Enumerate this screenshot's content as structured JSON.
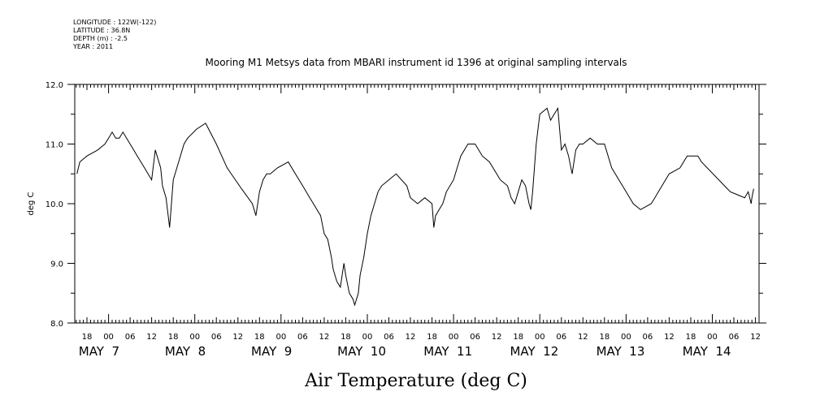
{
  "metadata": {
    "longitude": "LONGITUDE : 122W(-122)",
    "latitude": "LATITUDE : 36.8N",
    "depth": "DEPTH (m) : -2.5",
    "year": "YEAR : 2011"
  },
  "chart_data": {
    "type": "line",
    "title": "Mooring M1 Metsys data from MBARI instrument id 1396 at original sampling intervals",
    "xlabel": "Air Temperature (deg C)",
    "ylabel": "deg C",
    "ylim": [
      8.0,
      12.0
    ],
    "y_ticks": [
      "8.0",
      "9.0",
      "10.0",
      "11.0",
      "12.0"
    ],
    "x_unit": "hours since 2011-05-07 00:00",
    "xlim": [
      -9.4,
      181
    ],
    "hour_tick_labels": [
      "18",
      "00",
      "06",
      "12",
      "18",
      "00",
      "06",
      "12",
      "18",
      "00",
      "06",
      "12",
      "18",
      "00",
      "06",
      "12",
      "18",
      "00",
      "06",
      "12",
      "18",
      "00",
      "06",
      "12",
      "18",
      "00",
      "06",
      "12",
      "18",
      "00",
      "06",
      "12"
    ],
    "day_labels": [
      "MAY 7",
      "MAY 8",
      "MAY 9",
      "MAY 10",
      "MAY 11",
      "MAY 12",
      "MAY 13",
      "MAY 14"
    ],
    "grid": false,
    "series": [
      {
        "x": [
          -8.8,
          -8.0,
          -6.0,
          -3.0,
          -1.0,
          0.0,
          1.0,
          2.0,
          3.0,
          4.0,
          6.0,
          7.0,
          8.0,
          9.0,
          10.0,
          11.0,
          12.0,
          13.0,
          13.5,
          14.5,
          15.0,
          16.0,
          17.0,
          18.0,
          19.5,
          21.0,
          22.0,
          24.5,
          27.0,
          30.0,
          33.0,
          37.0,
          40.0,
          41.0,
          42.0,
          43.0,
          44.0,
          45.0,
          47.0,
          50.0,
          52.0,
          54.0,
          56.0,
          59.0,
          60.0,
          61.0,
          62.0,
          62.5,
          63.5,
          64.5,
          65.5,
          66.0,
          67.0,
          68.0,
          68.5,
          69.5,
          70.0,
          71.0,
          72.0,
          73.0,
          74.0,
          75.0,
          76.0,
          78.0,
          80.0,
          83.0,
          84.0,
          86.0,
          88.0,
          90.0,
          90.5,
          91.0,
          92.0,
          93.0,
          94.0,
          96.0,
          97.0,
          98.0,
          100.0,
          102.0,
          104.0,
          106.0,
          108.0,
          109.0,
          111.0,
          112.0,
          113.0,
          114.0,
          115.0,
          116.0,
          117.0,
          117.5,
          118.0,
          118.5,
          119.0,
          120.0,
          122.0,
          123.0,
          124.0,
          125.0,
          126.0,
          127.0,
          128.0,
          129.0,
          130.0,
          131.0,
          132.0,
          134.0,
          136.0,
          138.0,
          140.0,
          142.0,
          144.0,
          146.0,
          148.0,
          151.0,
          152.0,
          153.0,
          154.0,
          156.0,
          159.0,
          161.0,
          162.0,
          164.0,
          165.0,
          173.0,
          175.0,
          177.0,
          178.0,
          178.8,
          179.0,
          179.5
        ],
        "values": [
          10.5,
          10.7,
          10.8,
          10.9,
          11.0,
          11.1,
          11.2,
          11.1,
          11.1,
          11.2,
          11.0,
          10.9,
          10.8,
          10.7,
          10.6,
          10.5,
          10.4,
          10.9,
          10.8,
          10.6,
          10.3,
          10.1,
          9.6,
          10.4,
          10.7,
          11.0,
          11.1,
          11.25,
          11.35,
          11.0,
          10.6,
          10.25,
          10.0,
          9.8,
          10.2,
          10.4,
          10.5,
          10.5,
          10.6,
          10.7,
          10.5,
          10.3,
          10.1,
          9.8,
          9.5,
          9.4,
          9.1,
          8.9,
          8.7,
          8.6,
          9.0,
          8.8,
          8.5,
          8.4,
          8.3,
          8.5,
          8.8,
          9.1,
          9.5,
          9.8,
          10.0,
          10.2,
          10.3,
          10.4,
          10.5,
          10.3,
          10.1,
          10.0,
          10.1,
          10.0,
          9.6,
          9.8,
          9.9,
          10.0,
          10.2,
          10.4,
          10.6,
          10.8,
          11.0,
          11.0,
          10.8,
          10.7,
          10.5,
          10.4,
          10.3,
          10.1,
          10.0,
          10.2,
          10.4,
          10.3,
          10.0,
          9.9,
          10.2,
          10.6,
          11.0,
          11.5,
          11.6,
          11.4,
          11.5,
          11.6,
          10.9,
          11.0,
          10.8,
          10.5,
          10.9,
          11.0,
          11.0,
          11.1,
          11.0,
          11.0,
          10.6,
          10.4,
          10.2,
          10.0,
          9.9,
          10.0,
          10.1,
          10.2,
          10.3,
          10.5,
          10.6,
          10.8,
          10.8,
          10.8,
          10.7,
          10.2,
          10.15,
          10.1,
          10.2,
          10.0,
          10.1,
          10.25
        ]
      }
    ]
  }
}
